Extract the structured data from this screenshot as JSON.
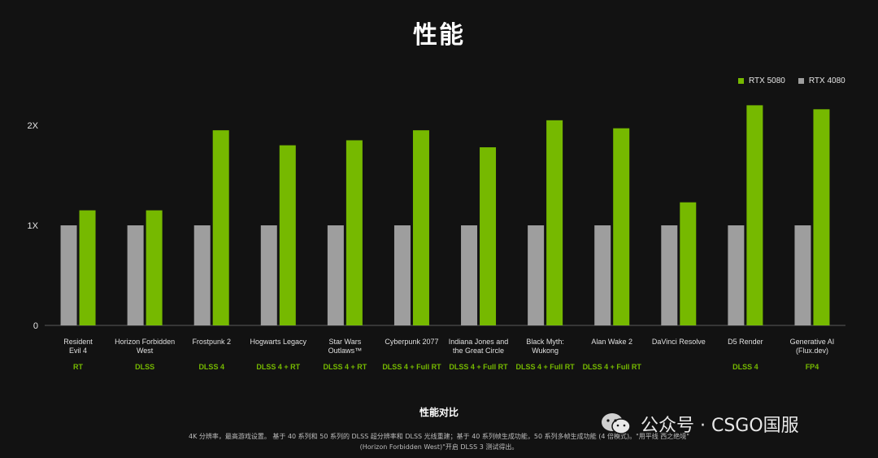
{
  "title": "性能",
  "colors": {
    "rtx5080": "#76b900",
    "rtx4080": "#9e9e9e",
    "background": "#121212"
  },
  "legend": [
    {
      "label": "RTX 5080",
      "color": "#76b900"
    },
    {
      "label": "RTX 4080",
      "color": "#9e9e9e"
    }
  ],
  "chart_data": {
    "type": "bar",
    "title": "性能",
    "xlabel": "性能对比",
    "ylabel": "",
    "ylim": [
      0,
      2.3
    ],
    "yticks": [
      {
        "value": 0,
        "label": "0"
      },
      {
        "value": 1,
        "label": "1X"
      },
      {
        "value": 2,
        "label": "2X"
      }
    ],
    "categories": [
      "Resident\nEvil 4",
      "Horizon Forbidden\nWest",
      "Frostpunk 2",
      "Hogwarts Legacy",
      "Star Wars\nOutlaws™",
      "Cyberpunk 2077",
      "Indiana Jones and\nthe Great Circle",
      "Black Myth:\nWukong",
      "Alan Wake 2",
      "DaVinci Resolve",
      "D5 Render",
      "Generative AI\n(Flux.dev)"
    ],
    "tags": [
      "RT",
      "DLSS",
      "DLSS 4",
      "DLSS 4 + RT",
      "DLSS 4 + RT",
      "DLSS 4 + Full RT",
      "DLSS 4 + Full RT",
      "DLSS 4 + Full RT",
      "DLSS 4 + Full RT",
      "",
      "DLSS 4",
      "FP4"
    ],
    "series": [
      {
        "name": "RTX 4080",
        "values": [
          1,
          1,
          1,
          1,
          1,
          1,
          1,
          1,
          1,
          1,
          1,
          1
        ]
      },
      {
        "name": "RTX 5080",
        "values": [
          1.15,
          1.15,
          1.95,
          1.8,
          1.85,
          1.95,
          1.78,
          2.05,
          1.97,
          1.23,
          2.2,
          2.16
        ]
      }
    ],
    "grid": false,
    "legend_position": "top-right"
  },
  "footer": {
    "chart_title": "性能对比",
    "note_line1": "4K 分辨率，最高游戏设置。 基于 40 系列和 50 系列的 DLSS 超分辨率和 DLSS 光线重建；基于 40 系列帧生成功能，50 系列多帧生成功能 (4 倍模式)。\"用平线 西之绝境\"",
    "note_line2": "(Horizon Forbidden West)\"开启 DLSS 3 测试得出。"
  },
  "watermark": {
    "text": "公众号 · CSGO国服"
  }
}
